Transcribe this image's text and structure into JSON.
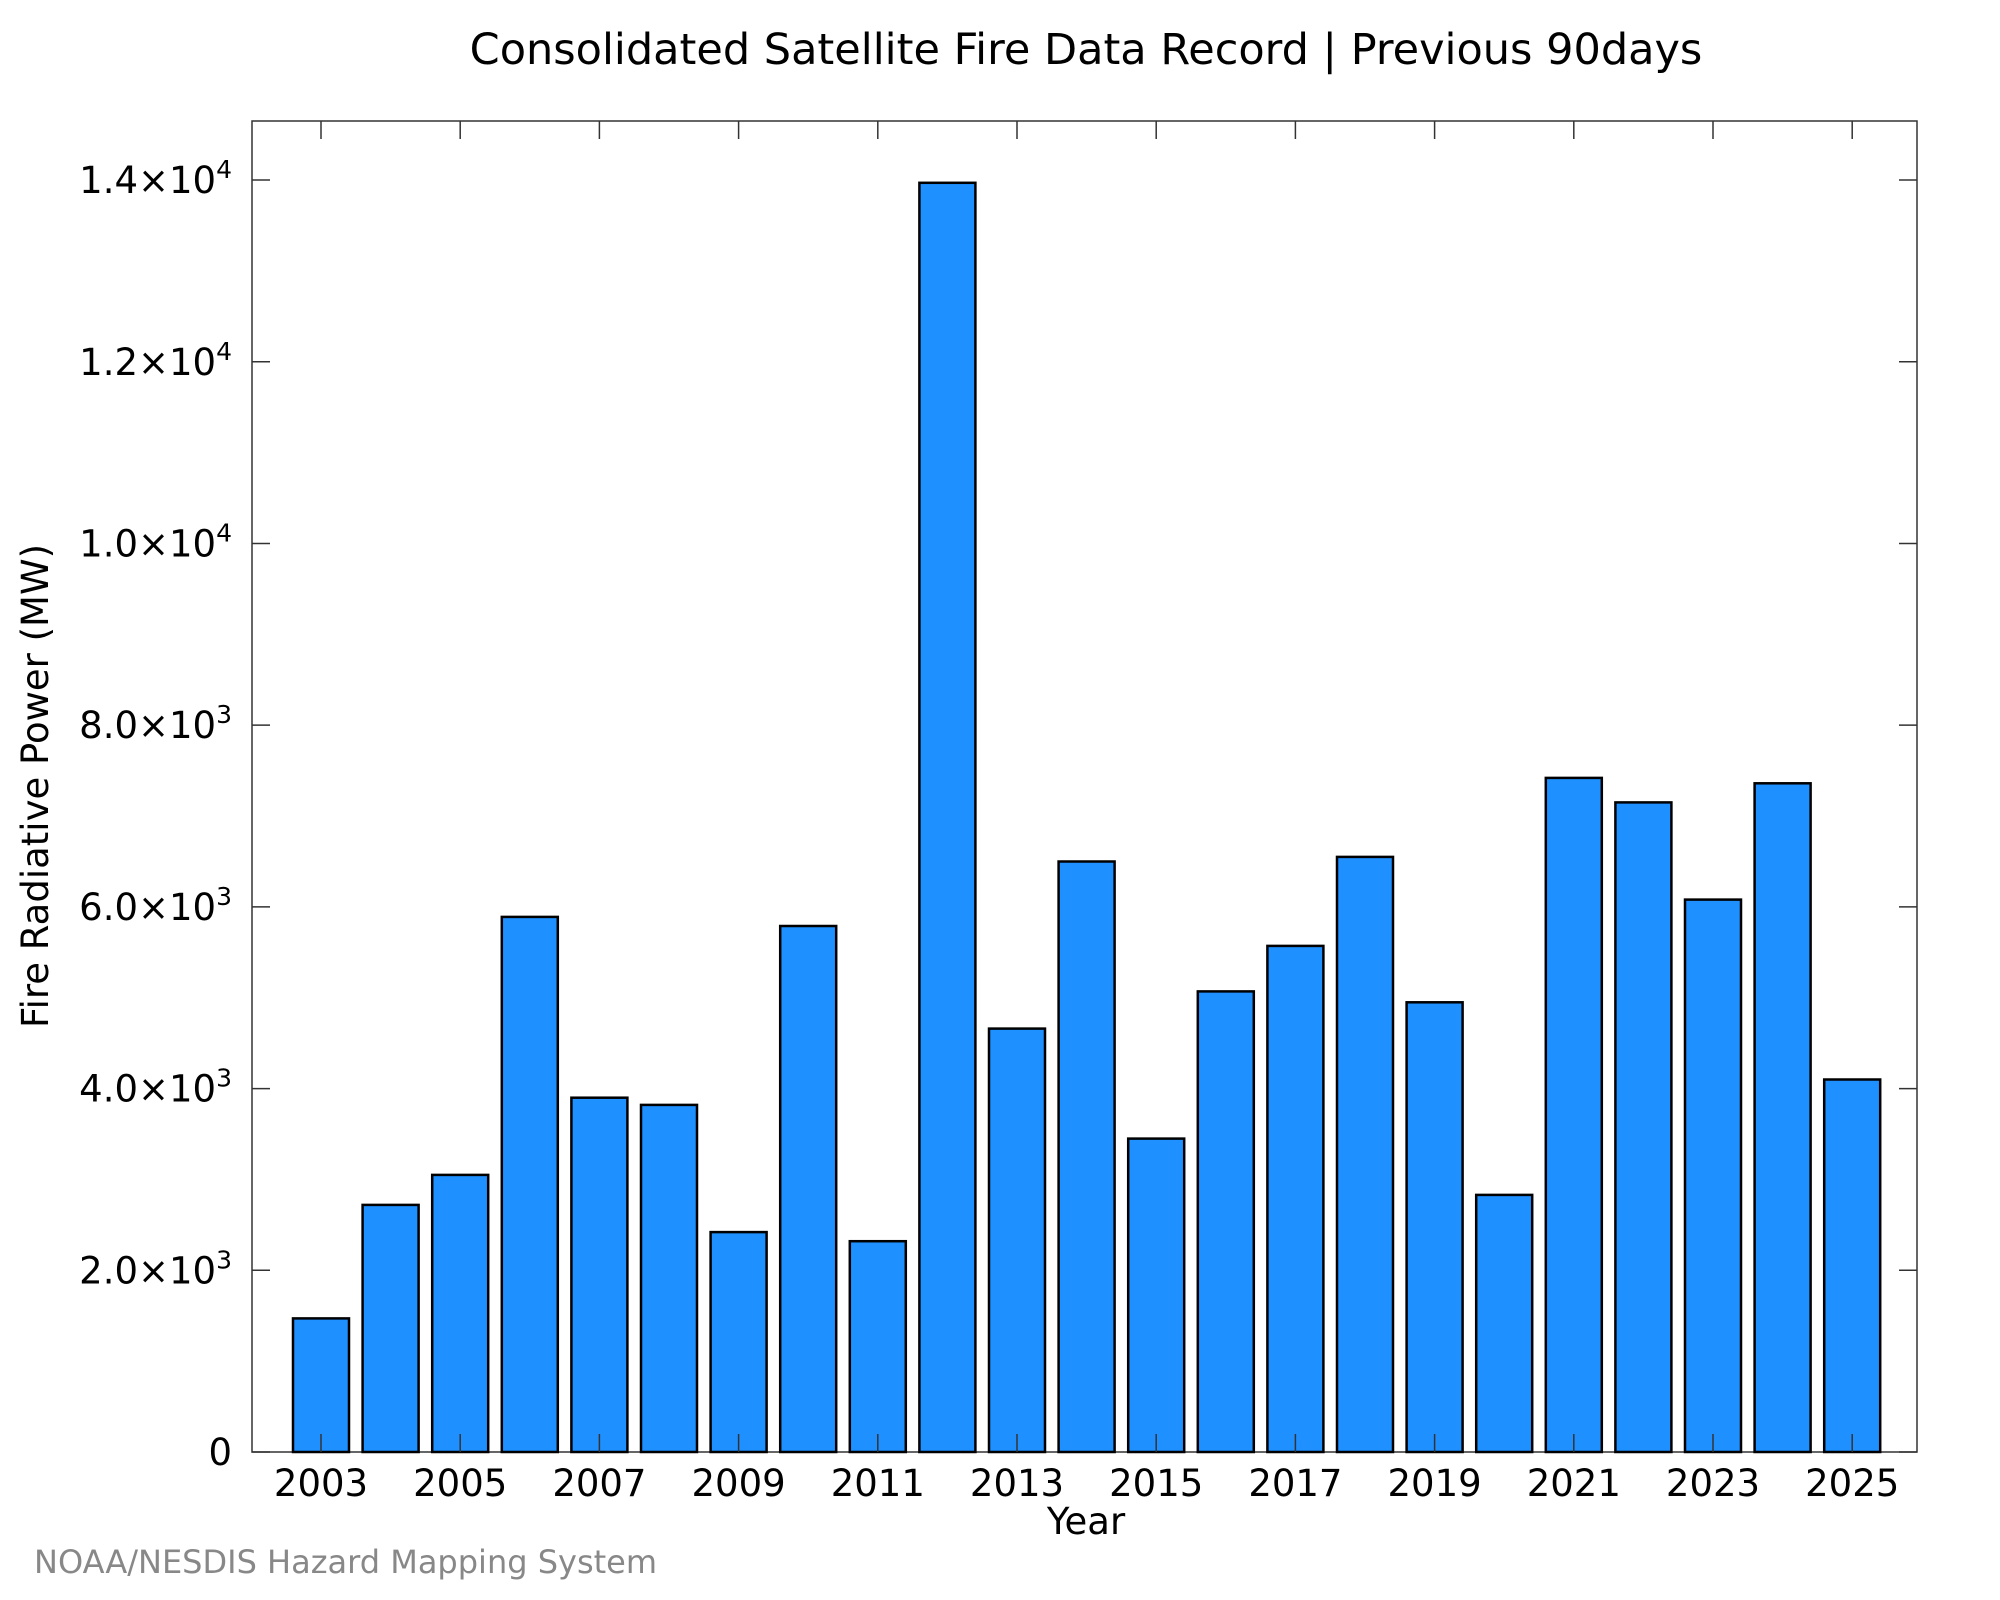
{
  "credit": "NOAA/NESDIS Hazard Mapping System",
  "colors": {
    "bar": "#1E90FF",
    "bar_stroke": "#000000",
    "axis": "#333333",
    "credit": "#888888"
  },
  "chart_data": {
    "type": "bar",
    "title": "Consolidated Satellite Fire Data Record | Previous 90days",
    "xlabel": "Year",
    "ylabel": "Fire Radiative Power (MW)",
    "categories": [
      "2003",
      "2004",
      "2005",
      "2006",
      "2007",
      "2008",
      "2009",
      "2010",
      "2011",
      "2012",
      "2013",
      "2014",
      "2015",
      "2016",
      "2017",
      "2018",
      "2019",
      "2020",
      "2021",
      "2022",
      "2023",
      "2024",
      "2025"
    ],
    "values": [
      1470,
      2720,
      3050,
      5890,
      3900,
      3820,
      2420,
      5790,
      2320,
      13970,
      4660,
      6500,
      3450,
      5070,
      5570,
      6550,
      4950,
      2830,
      7420,
      7150,
      6080,
      7360,
      4100
    ],
    "ylim": [
      0,
      14650
    ],
    "x_tick_labels": [
      "2003",
      "2005",
      "2007",
      "2009",
      "2011",
      "2013",
      "2015",
      "2017",
      "2019",
      "2021",
      "2023",
      "2025"
    ],
    "y_ticks": [
      {
        "value": 0,
        "mant": "0",
        "exp": ""
      },
      {
        "value": 2000,
        "mant": "2.0×10",
        "exp": "3"
      },
      {
        "value": 4000,
        "mant": "4.0×10",
        "exp": "3"
      },
      {
        "value": 6000,
        "mant": "6.0×10",
        "exp": "3"
      },
      {
        "value": 8000,
        "mant": "8.0×10",
        "exp": "3"
      },
      {
        "value": 10000,
        "mant": "1.0×10",
        "exp": "4"
      },
      {
        "value": 12000,
        "mant": "1.2×10",
        "exp": "4"
      },
      {
        "value": 14000,
        "mant": "1.4×10",
        "exp": "4"
      }
    ],
    "grid": false,
    "legend": "none"
  }
}
